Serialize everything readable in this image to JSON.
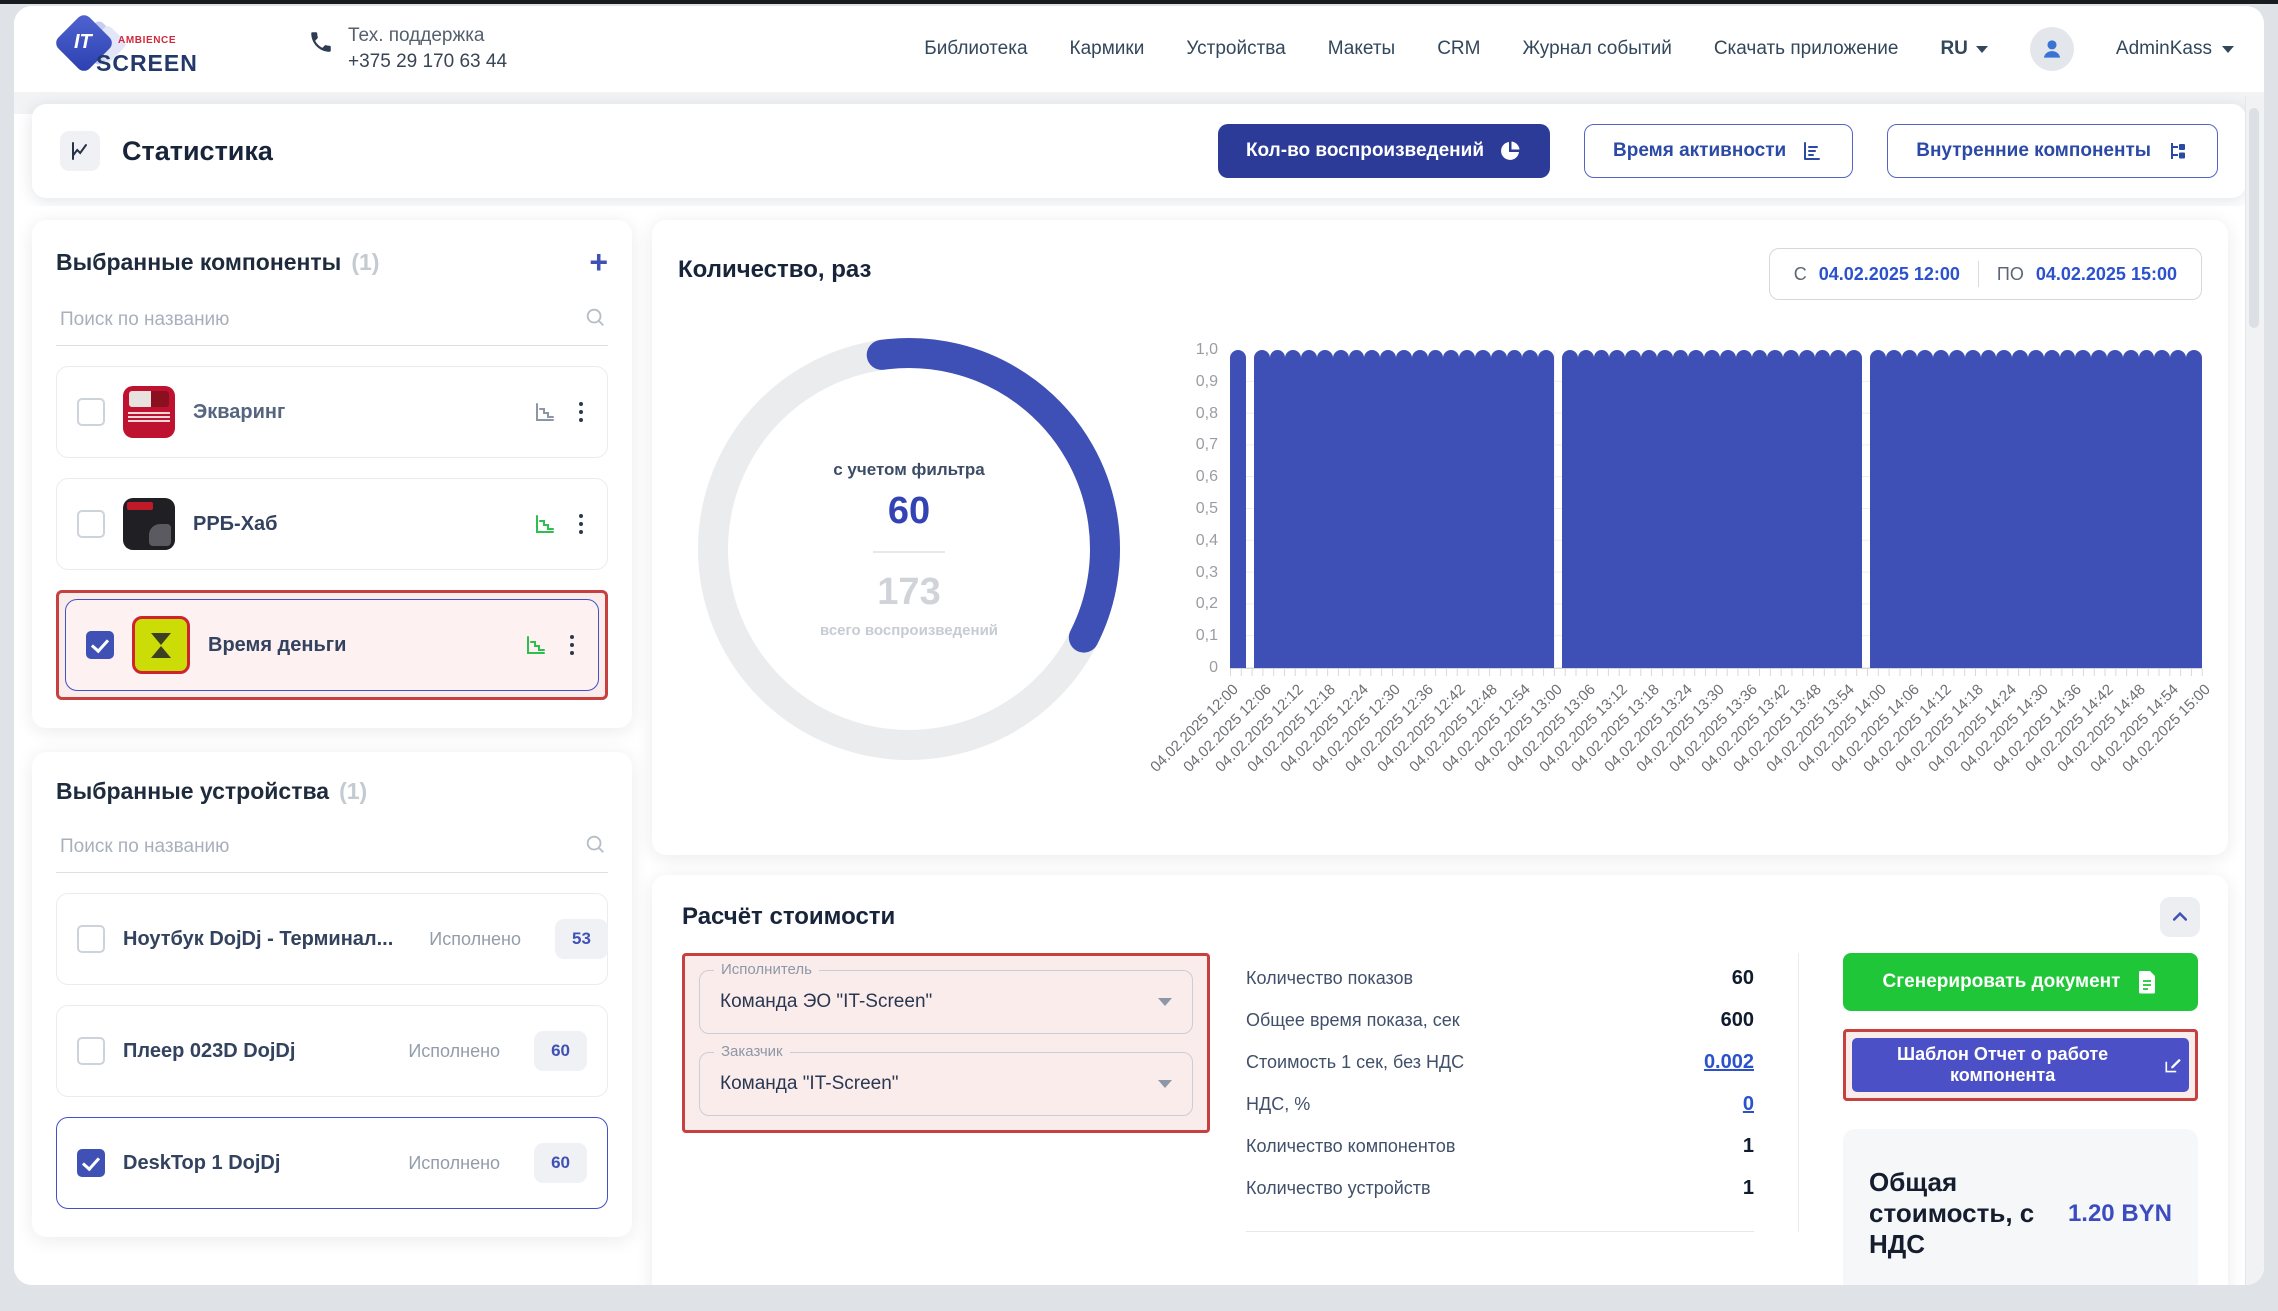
{
  "colors": {
    "primary": "#3e50b5",
    "active_button": "#2c3b97",
    "green": "#1fc637",
    "purple": "#4b50c6",
    "link": "#2b52cc",
    "annotation_red": "#c74040",
    "badge_text": "#3f51b5"
  },
  "topbar": {
    "logo": {
      "it": "IT",
      "screen": "SCREEN",
      "ambience": "AMBIENCE"
    },
    "support": {
      "label": "Тех. поддержка",
      "phone": "+375 29 170 63 44"
    },
    "nav": [
      "Библиотека",
      "Кармики",
      "Устройства",
      "Макеты",
      "CRM",
      "Журнал событий",
      "Скачать приложение"
    ],
    "lang": "RU",
    "user": "AdminKass"
  },
  "stats_header": {
    "title": "Статистика",
    "buttons": [
      {
        "label": "Кол-во воспроизведений",
        "active": true
      },
      {
        "label": "Время активности",
        "active": false
      },
      {
        "label": "Внутренние компоненты",
        "active": false
      }
    ]
  },
  "components_panel": {
    "title": "Выбранные компоненты",
    "count": "(1)",
    "search_placeholder": "Поиск по названию",
    "items": [
      {
        "name": "Экваринг",
        "checked": false,
        "thumb": "ekvaring",
        "muted": true,
        "icon_green": false,
        "annotated": false,
        "selected": false
      },
      {
        "name": "РРБ-Хаб",
        "checked": false,
        "thumb": "rrb",
        "muted": false,
        "icon_green": true,
        "annotated": false,
        "selected": false
      },
      {
        "name": "Время деньги",
        "checked": true,
        "thumb": "vremya",
        "muted": false,
        "icon_green": true,
        "annotated": true,
        "selected": true
      }
    ]
  },
  "devices_panel": {
    "title": "Выбранные устройства",
    "count": "(1)",
    "search_placeholder": "Поиск по названию",
    "items": [
      {
        "name": "Ноутбук DojDj - Терминал...",
        "executed_label": "Исполнено",
        "value": "53",
        "checked": false,
        "selected": false
      },
      {
        "name": "Плеер 023D DojDj",
        "executed_label": "Исполнено",
        "value": "60",
        "checked": false,
        "selected": false
      },
      {
        "name": "DeskTop 1 DojDj",
        "executed_label": "Исполнено",
        "value": "60",
        "checked": true,
        "selected": true
      }
    ]
  },
  "chart_card": {
    "title": "Количество, раз",
    "date_from_label": "С",
    "date_from": "04.02.2025 12:00",
    "date_to_label": "ПО",
    "date_to": "04.02.2025 15:00",
    "donut": {
      "label_top": "с учетом фильтра",
      "value": "60",
      "total": "173",
      "label_bottom": "всего воспроизведений"
    }
  },
  "chart_data": [
    {
      "type": "pie",
      "subtype": "donut",
      "title": "Количество, раз",
      "values": [
        {
          "name": "с учетом фильтра",
          "value": 60
        },
        {
          "name": "всего воспроизведений",
          "value": 173
        }
      ],
      "fill_fraction": 0.347,
      "start_angle_deg": -98,
      "color": "#3e50b5",
      "track_color": "#ebecee"
    },
    {
      "type": "bar",
      "title": "Количество воспроизведений по времени",
      "ylim": [
        0,
        1
      ],
      "grid": true,
      "y_ticks": [
        "1,0",
        "0,9",
        "0,8",
        "0,7",
        "0,6",
        "0,5",
        "0,4",
        "0,3",
        "0,2",
        "0,1",
        "0"
      ],
      "x_ticks": [
        "04.02.2025 12:00",
        "04.02.2025 12:06",
        "04.02.2025 12:12",
        "04.02.2025 12:18",
        "04.02.2025 12:24",
        "04.02.2025 12:30",
        "04.02.2025 12:36",
        "04.02.2025 12:42",
        "04.02.2025 12:48",
        "04.02.2025 12:54",
        "04.02.2025 13:00",
        "04.02.2025 13:06",
        "04.02.2025 13:12",
        "04.02.2025 13:18",
        "04.02.2025 13:24",
        "04.02.2025 13:30",
        "04.02.2025 13:36",
        "04.02.2025 13:42",
        "04.02.2025 13:48",
        "04.02.2025 13:54",
        "04.02.2025 14:00",
        "04.02.2025 14:06",
        "04.02.2025 14:12",
        "04.02.2025 14:18",
        "04.02.2025 14:24",
        "04.02.2025 14:30",
        "04.02.2025 14:36",
        "04.02.2025 14:42",
        "04.02.2025 14:48",
        "04.02.2025 14:54",
        "04.02.2025 15:00"
      ],
      "bar_count": 60,
      "bar_value": 1.0,
      "gaps_after_bar_index": [
        0,
        19,
        38
      ],
      "bar_color": "#3e50b5",
      "x_label_rotation": -45
    }
  ],
  "cost_card": {
    "title": "Расчёт стоимости",
    "fields": [
      {
        "label": "Исполнитель",
        "value": "Команда ЭО \"IT-Screen\""
      },
      {
        "label": "Заказчик",
        "value": "Команда \"IT-Screen\""
      }
    ],
    "rows": [
      {
        "label": "Количество показов",
        "value": "60",
        "link": false
      },
      {
        "label": "Общее время показа, сек",
        "value": "600",
        "link": false
      },
      {
        "label": "Стоимость 1 сек, без НДС",
        "value": "0.002",
        "link": true
      },
      {
        "label": "НДС, %",
        "value": "0",
        "link": true
      },
      {
        "label": "Количество компонентов",
        "value": "1",
        "link": false
      },
      {
        "label": "Количество устройств",
        "value": "1",
        "link": false
      }
    ],
    "generate_button": "Сгенерировать документ",
    "template_button": "Шаблон Отчет о работе компонента",
    "total_label": "Общая стоимость, с НДС",
    "total_value": "1.20 BYN"
  }
}
